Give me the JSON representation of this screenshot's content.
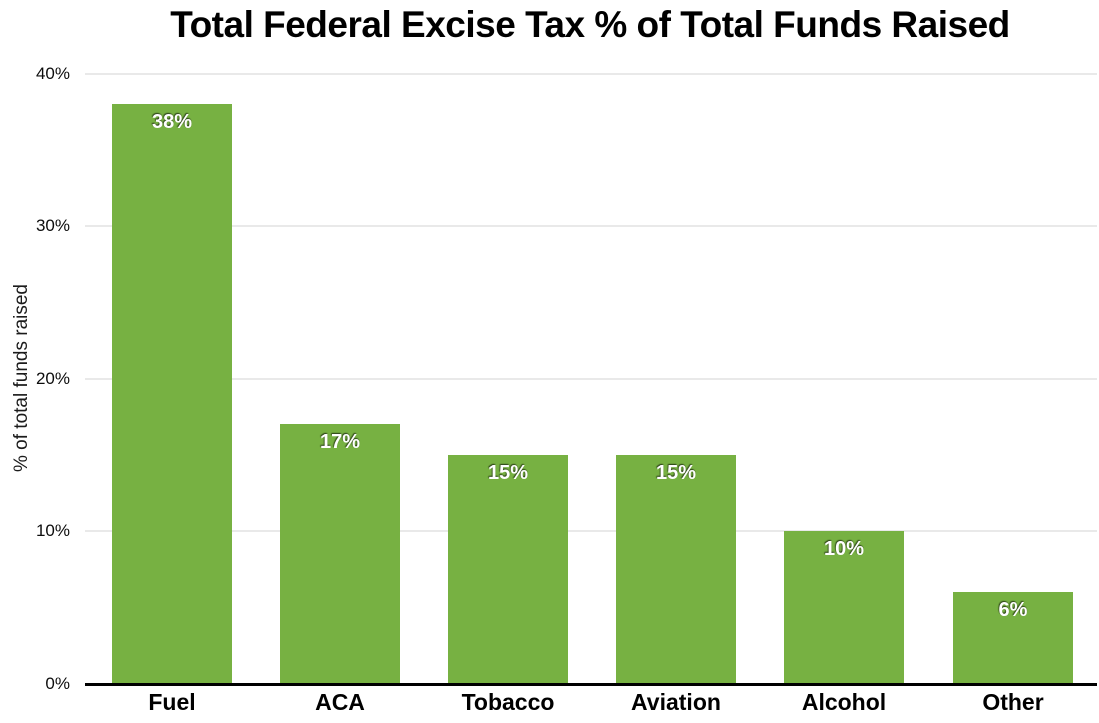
{
  "chart_data": {
    "type": "bar",
    "title": "Total Federal Excise Tax % of Total Funds Raised",
    "xlabel": "",
    "ylabel": "% of total funds raised",
    "categories": [
      "Fuel",
      "ACA",
      "Tobacco",
      "Aviation",
      "Alcohol",
      "Other"
    ],
    "values": [
      38,
      17,
      15,
      15,
      10,
      6
    ],
    "bar_labels": [
      "38%",
      "17%",
      "15%",
      "15%",
      "10%",
      "6%"
    ],
    "ylim": [
      0,
      40
    ],
    "yticks": [
      0,
      10,
      20,
      30,
      40
    ],
    "ytick_labels": [
      "0%",
      "10%",
      "20%",
      "30%",
      "40%"
    ],
    "grid": true,
    "legend_position": "none",
    "colors": {
      "bar": "#77b142",
      "bar_label_text": "#ffffff",
      "gridline": "#e9e9e9",
      "axis_line": "#000000",
      "background": "#ffffff",
      "title_text": "#000000",
      "tick_text": "#0d0d0d"
    }
  }
}
